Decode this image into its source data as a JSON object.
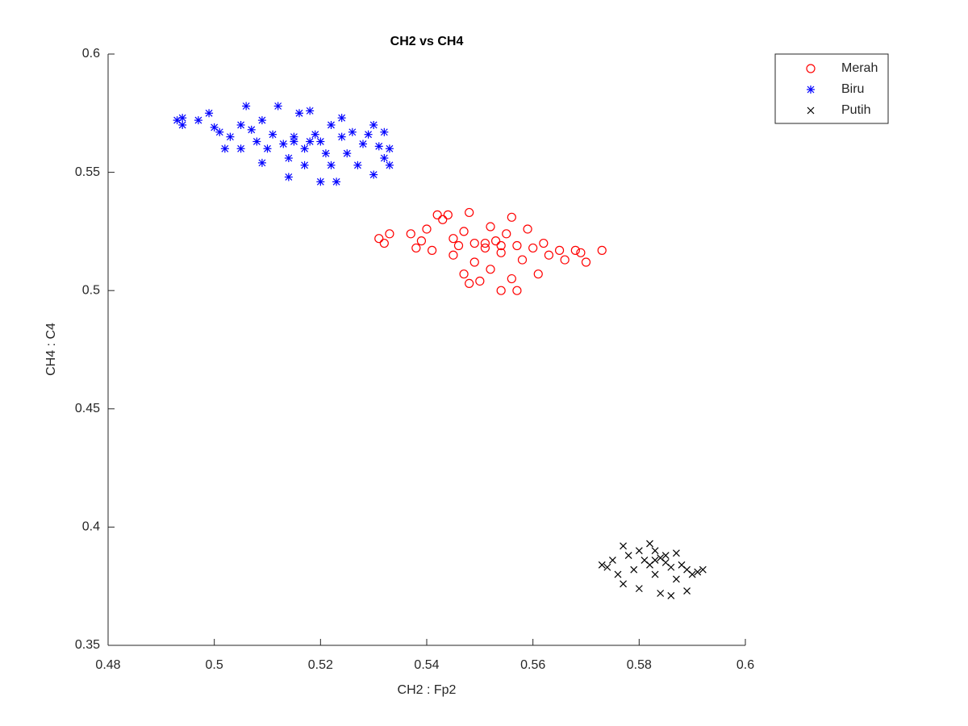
{
  "chart_data": {
    "type": "scatter",
    "title": "CH2 vs CH4",
    "x_label": "CH2 : Fp2",
    "y_label": "CH4 : C4",
    "xlim": [
      0.48,
      0.6
    ],
    "xticks": [
      0.48,
      0.5,
      0.52,
      0.54,
      0.56,
      0.58,
      0.6
    ],
    "ylim": [
      0.35,
      0.6
    ],
    "yticks": [
      0.35,
      0.4,
      0.45,
      0.5,
      0.55,
      0.6
    ],
    "grid": false,
    "legend": "northeastoutside",
    "series": [
      {
        "name": "Merah",
        "color": "#ff0000",
        "marker": "circle",
        "x": [
          0.531,
          0.532,
          0.533,
          0.537,
          0.538,
          0.539,
          0.54,
          0.541,
          0.542,
          0.543,
          0.544,
          0.545,
          0.545,
          0.546,
          0.547,
          0.547,
          0.548,
          0.548,
          0.549,
          0.549,
          0.55,
          0.551,
          0.552,
          0.552,
          0.553,
          0.554,
          0.554,
          0.555,
          0.556,
          0.556,
          0.557,
          0.557,
          0.558,
          0.559,
          0.56,
          0.561,
          0.562,
          0.563,
          0.565,
          0.566,
          0.568,
          0.569,
          0.57,
          0.573,
          0.551,
          0.554
        ],
        "y": [
          0.522,
          0.52,
          0.524,
          0.524,
          0.518,
          0.521,
          0.526,
          0.517,
          0.532,
          0.53,
          0.532,
          0.522,
          0.515,
          0.519,
          0.525,
          0.507,
          0.503,
          0.533,
          0.52,
          0.512,
          0.504,
          0.518,
          0.527,
          0.509,
          0.521,
          0.5,
          0.516,
          0.524,
          0.531,
          0.505,
          0.519,
          0.5,
          0.513,
          0.526,
          0.518,
          0.507,
          0.52,
          0.515,
          0.517,
          0.513,
          0.517,
          0.516,
          0.512,
          0.517,
          0.52,
          0.519
        ]
      },
      {
        "name": "Biru",
        "color": "#0000ff",
        "marker": "asterisk",
        "x": [
          0.493,
          0.494,
          0.494,
          0.497,
          0.499,
          0.5,
          0.501,
          0.502,
          0.503,
          0.505,
          0.505,
          0.506,
          0.507,
          0.508,
          0.509,
          0.509,
          0.51,
          0.511,
          0.512,
          0.513,
          0.514,
          0.514,
          0.515,
          0.516,
          0.517,
          0.517,
          0.518,
          0.519,
          0.52,
          0.52,
          0.521,
          0.522,
          0.522,
          0.523,
          0.524,
          0.524,
          0.525,
          0.526,
          0.527,
          0.528,
          0.529,
          0.53,
          0.53,
          0.531,
          0.532,
          0.532,
          0.533,
          0.533,
          0.515,
          0.518
        ],
        "y": [
          0.572,
          0.57,
          0.573,
          0.572,
          0.575,
          0.569,
          0.567,
          0.56,
          0.565,
          0.57,
          0.56,
          0.578,
          0.568,
          0.563,
          0.572,
          0.554,
          0.56,
          0.566,
          0.578,
          0.562,
          0.556,
          0.548,
          0.565,
          0.575,
          0.56,
          0.553,
          0.576,
          0.566,
          0.563,
          0.546,
          0.558,
          0.57,
          0.553,
          0.546,
          0.565,
          0.573,
          0.558,
          0.567,
          0.553,
          0.562,
          0.566,
          0.549,
          0.57,
          0.561,
          0.567,
          0.556,
          0.553,
          0.56,
          0.563,
          0.563
        ]
      },
      {
        "name": "Putih",
        "color": "#000000",
        "marker": "x",
        "x": [
          0.573,
          0.574,
          0.575,
          0.576,
          0.577,
          0.577,
          0.578,
          0.579,
          0.58,
          0.58,
          0.581,
          0.582,
          0.582,
          0.583,
          0.583,
          0.584,
          0.584,
          0.585,
          0.586,
          0.586,
          0.587,
          0.587,
          0.588,
          0.589,
          0.589,
          0.59,
          0.591,
          0.592,
          0.585,
          0.583
        ],
        "y": [
          0.384,
          0.383,
          0.386,
          0.38,
          0.392,
          0.376,
          0.388,
          0.382,
          0.374,
          0.39,
          0.386,
          0.393,
          0.384,
          0.38,
          0.39,
          0.372,
          0.387,
          0.385,
          0.371,
          0.383,
          0.389,
          0.378,
          0.384,
          0.373,
          0.382,
          0.38,
          0.381,
          0.382,
          0.388,
          0.386
        ]
      }
    ]
  }
}
